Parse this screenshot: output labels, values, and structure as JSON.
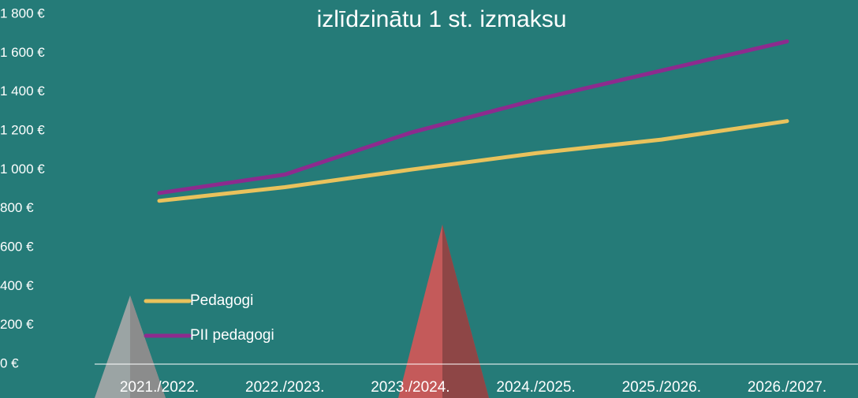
{
  "chart_data": {
    "type": "line",
    "title": "izlīdzinātu 1 st. izmaksu",
    "categories": [
      "2021./2022.",
      "2022./2023.",
      "2023./2024.",
      "2024./2025.",
      "2025./2026.",
      "2026./2027."
    ],
    "series": [
      {
        "name": "Pedagogi",
        "color": "#e9c25c",
        "values": [
          840,
          910,
          1000,
          1085,
          1155,
          1250
        ]
      },
      {
        "name": "PII pedagogi",
        "color": "#8d2b8e",
        "values": [
          880,
          975,
          1190,
          1360,
          1510,
          1660
        ]
      }
    ],
    "ylim": [
      0,
      1800
    ],
    "yticks": [
      {
        "value": 0,
        "label": "0 €"
      },
      {
        "value": 200,
        "label": "200 €"
      },
      {
        "value": 400,
        "label": "400 €"
      },
      {
        "value": 600,
        "label": "600 €"
      },
      {
        "value": 800,
        "label": "800 €"
      },
      {
        "value": 1000,
        "label": "1 000 €"
      },
      {
        "value": 1200,
        "label": "1 200 €"
      },
      {
        "value": 1400,
        "label": "1 400 €"
      },
      {
        "value": 1600,
        "label": "1 600 €"
      },
      {
        "value": 1800,
        "label": "1 800 €"
      }
    ],
    "grid": false
  }
}
